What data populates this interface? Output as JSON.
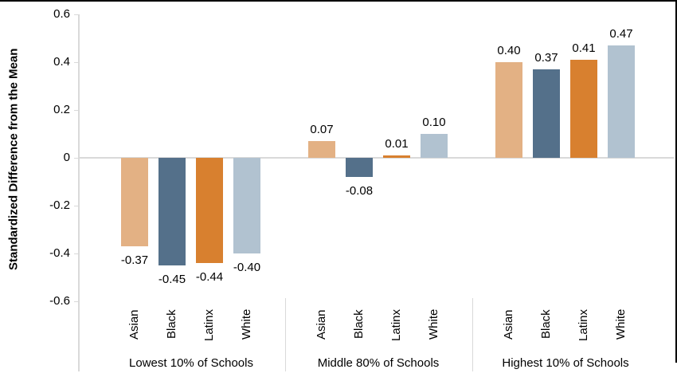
{
  "chart_data": {
    "type": "bar",
    "title": "",
    "xlabel": "",
    "ylabel": "Standardized Difference from the Mean",
    "ylim": [
      -0.6,
      0.6
    ],
    "ytick_values": [
      0.6,
      0.4,
      0.2,
      0,
      -0.2,
      -0.4,
      -0.6
    ],
    "ytick_labels": [
      "0.6",
      "0.4",
      "0.2",
      "0",
      "-0.2",
      "-0.4",
      "-0.6"
    ],
    "grid": false,
    "legend": null,
    "categories": [
      "Asian",
      "Black",
      "Latinx",
      "White"
    ],
    "bar_colors": [
      "#e3b184",
      "#54708a",
      "#d8802f",
      "#b1c2d0"
    ],
    "axis_color": "#d9d9d9",
    "border_color": "#000000",
    "groups": [
      {
        "label": "Lowest 10% of Schools",
        "values": [
          -0.37,
          -0.45,
          -0.44,
          -0.4
        ],
        "value_labels": [
          "-0.37",
          "-0.45",
          "-0.44",
          "-0.40"
        ]
      },
      {
        "label": "Middle 80% of Schools",
        "values": [
          0.07,
          -0.08,
          0.01,
          0.1
        ],
        "value_labels": [
          "0.07",
          "-0.08",
          "0.01",
          "0.10"
        ]
      },
      {
        "label": "Highest 10% of Schools",
        "values": [
          0.4,
          0.37,
          0.41,
          0.47
        ],
        "value_labels": [
          "0.40",
          "0.37",
          "0.41",
          "0.47"
        ]
      }
    ]
  }
}
